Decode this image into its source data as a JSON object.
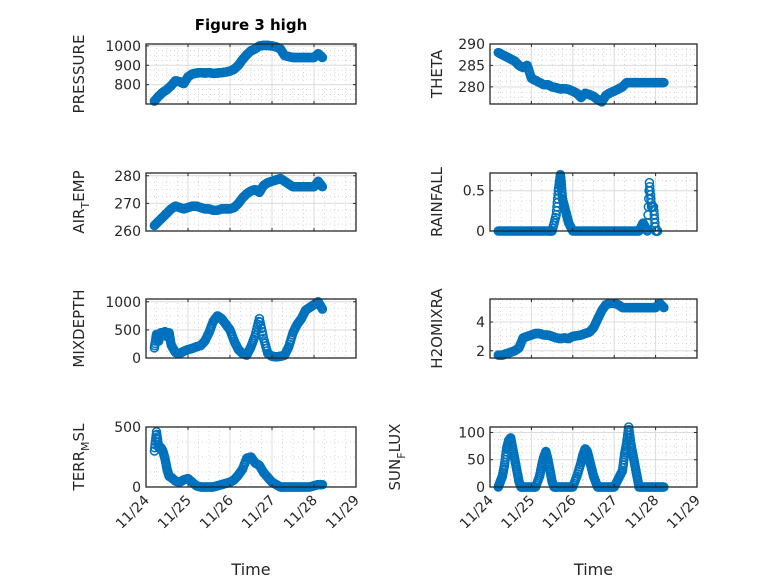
{
  "figure_title": "Figure 3 high",
  "chart_data": [
    {
      "type": "scatter",
      "id": "pressure",
      "title": "Figure 3 high",
      "xlabel": "",
      "ylabel": "PRESSURE",
      "xlim": [
        0,
        5
      ],
      "ylim": [
        700,
        1010
      ],
      "xticks": [
        "11/24",
        "11/25",
        "11/26",
        "11/27",
        "11/28",
        "11/29"
      ],
      "yticks": [
        800,
        900,
        1000
      ],
      "ytick_labels": [
        "800",
        "900",
        "1000"
      ],
      "grid": true,
      "marker": "circle-open",
      "color": "#0072BD",
      "x": [
        0.2,
        0.3,
        0.4,
        0.5,
        0.6,
        0.7,
        0.8,
        0.9,
        1.0,
        1.1,
        1.2,
        1.3,
        1.4,
        1.5,
        1.6,
        1.7,
        1.8,
        1.9,
        2.0,
        2.1,
        2.2,
        2.3,
        2.4,
        2.5,
        2.6,
        2.7,
        2.8,
        2.9,
        3.0,
        3.1,
        3.2,
        3.3,
        3.4,
        3.5,
        3.6,
        3.7,
        3.8,
        3.9,
        4.0,
        4.1,
        4.2
      ],
      "y": [
        715,
        740,
        760,
        775,
        795,
        820,
        815,
        805,
        840,
        855,
        860,
        862,
        860,
        862,
        858,
        860,
        862,
        865,
        870,
        880,
        900,
        930,
        955,
        975,
        985,
        1000,
        1003,
        1003,
        1000,
        995,
        985,
        950,
        945,
        940,
        940,
        940,
        940,
        940,
        940,
        960,
        940
      ]
    },
    {
      "type": "scatter",
      "id": "theta",
      "xlabel": "",
      "ylabel": "THETA",
      "xlim": [
        0,
        5
      ],
      "ylim": [
        276,
        290
      ],
      "xticks": [
        "11/24",
        "11/25",
        "11/26",
        "11/27",
        "11/28",
        "11/29"
      ],
      "yticks": [
        280,
        285,
        290
      ],
      "ytick_labels": [
        "280",
        "285",
        "290"
      ],
      "grid": true,
      "marker": "circle-open",
      "color": "#0072BD",
      "x": [
        0.2,
        0.3,
        0.4,
        0.5,
        0.6,
        0.7,
        0.8,
        0.9,
        1.0,
        1.1,
        1.2,
        1.3,
        1.4,
        1.5,
        1.6,
        1.7,
        1.8,
        1.9,
        2.0,
        2.1,
        2.2,
        2.3,
        2.4,
        2.5,
        2.6,
        2.7,
        2.8,
        2.9,
        3.0,
        3.1,
        3.2,
        3.3,
        3.4,
        3.5,
        3.6,
        3.7,
        3.8,
        3.9,
        4.0,
        4.1,
        4.2
      ],
      "y": [
        288,
        287.5,
        287,
        286.5,
        286,
        285,
        284.5,
        285,
        282,
        281.5,
        281,
        280.5,
        280.5,
        280,
        279.8,
        279.5,
        279.6,
        279.4,
        279,
        278.5,
        277.5,
        278.5,
        278.2,
        277.8,
        277,
        276.5,
        278,
        278.6,
        279,
        279.5,
        280,
        281,
        281,
        281,
        281,
        281,
        281,
        281,
        281,
        281,
        281
      ]
    },
    {
      "type": "scatter",
      "id": "air_temp",
      "xlabel": "",
      "ylabel": "AIR_TEMP",
      "xlim": [
        0,
        5
      ],
      "ylim": [
        260,
        281
      ],
      "xticks": [
        "11/24",
        "11/25",
        "11/26",
        "11/27",
        "11/28",
        "11/29"
      ],
      "yticks": [
        260,
        270,
        280
      ],
      "ytick_labels": [
        "260",
        "270",
        "280"
      ],
      "grid": true,
      "marker": "circle-open",
      "color": "#0072BD",
      "x": [
        0.2,
        0.3,
        0.4,
        0.5,
        0.6,
        0.7,
        0.8,
        0.9,
        1.0,
        1.1,
        1.2,
        1.3,
        1.4,
        1.5,
        1.6,
        1.7,
        1.8,
        1.9,
        2.0,
        2.1,
        2.2,
        2.3,
        2.4,
        2.5,
        2.6,
        2.7,
        2.8,
        2.9,
        3.0,
        3.1,
        3.2,
        3.3,
        3.4,
        3.5,
        3.6,
        3.7,
        3.8,
        3.9,
        4.0,
        4.1,
        4.2
      ],
      "y": [
        262,
        263.5,
        265,
        266.5,
        268,
        269,
        268.5,
        268,
        268.5,
        269,
        269,
        268.5,
        268,
        268,
        267.5,
        267.5,
        268,
        268,
        268,
        268.5,
        270,
        272,
        273.5,
        274.5,
        275,
        274,
        276.5,
        277.5,
        278,
        278.5,
        279,
        278,
        277,
        276,
        276,
        276,
        276,
        276,
        276,
        278,
        276
      ]
    },
    {
      "type": "scatter",
      "id": "rainfall",
      "xlabel": "",
      "ylabel": "RAINFALL",
      "xlim": [
        0,
        5
      ],
      "ylim": [
        0,
        0.72
      ],
      "xticks": [
        "11/24",
        "11/25",
        "11/26",
        "11/27",
        "11/28",
        "11/29"
      ],
      "yticks": [
        0,
        0.5
      ],
      "ytick_labels": [
        "0",
        "0.5"
      ],
      "grid": true,
      "marker": "circle-open",
      "color": "#0072BD",
      "x": [
        0.2,
        0.4,
        0.6,
        0.8,
        1.0,
        1.2,
        1.4,
        1.5,
        1.6,
        1.65,
        1.7,
        1.72,
        1.75,
        1.8,
        1.85,
        1.9,
        2.0,
        2.2,
        2.4,
        2.6,
        2.8,
        3.0,
        3.2,
        3.4,
        3.6,
        3.7,
        3.8,
        3.85,
        3.9,
        3.95,
        4.0,
        4.05
      ],
      "y": [
        0,
        0,
        0,
        0,
        0,
        0,
        0,
        0,
        0.2,
        0.5,
        0.7,
        0.6,
        0.4,
        0.3,
        0.2,
        0.1,
        0,
        0,
        0,
        0,
        0,
        0,
        0,
        0,
        0,
        0.1,
        0,
        0.6,
        0.3,
        0.3,
        0,
        0
      ]
    },
    {
      "type": "scatter",
      "id": "mixdepth",
      "xlabel": "",
      "ylabel": "MIXDEPTH",
      "xlim": [
        0,
        5
      ],
      "ylim": [
        0,
        1050
      ],
      "xticks": [
        "11/24",
        "11/25",
        "11/26",
        "11/27",
        "11/28",
        "11/29"
      ],
      "yticks": [
        0,
        500,
        1000
      ],
      "ytick_labels": [
        "0",
        "500",
        "1000"
      ],
      "grid": true,
      "marker": "circle-open",
      "color": "#0072BD",
      "x": [
        0.2,
        0.25,
        0.3,
        0.35,
        0.4,
        0.45,
        0.5,
        0.55,
        0.6,
        0.7,
        0.8,
        0.9,
        1.0,
        1.1,
        1.2,
        1.3,
        1.4,
        1.5,
        1.6,
        1.7,
        1.8,
        1.9,
        2.0,
        2.1,
        2.2,
        2.3,
        2.4,
        2.5,
        2.6,
        2.7,
        2.8,
        2.9,
        3.0,
        3.1,
        3.2,
        3.3,
        3.4,
        3.5,
        3.6,
        3.7,
        3.8,
        3.9,
        4.0,
        4.1,
        4.2
      ],
      "y": [
        180,
        420,
        300,
        450,
        430,
        470,
        380,
        450,
        230,
        100,
        80,
        120,
        150,
        170,
        200,
        220,
        300,
        450,
        650,
        750,
        700,
        600,
        500,
        300,
        150,
        80,
        50,
        200,
        400,
        700,
        350,
        80,
        30,
        20,
        30,
        50,
        200,
        450,
        600,
        700,
        850,
        900,
        950,
        1000,
        870
      ]
    },
    {
      "type": "scatter",
      "id": "h2omixra",
      "xlabel": "",
      "ylabel": "H2OMIXRA",
      "xlim": [
        0,
        5
      ],
      "ylim": [
        1.5,
        5.6
      ],
      "xticks": [
        "11/24",
        "11/25",
        "11/26",
        "11/27",
        "11/28",
        "11/29"
      ],
      "yticks": [
        2,
        4
      ],
      "ytick_labels": [
        "2",
        "4"
      ],
      "grid": true,
      "marker": "circle-open",
      "color": "#0072BD",
      "x": [
        0.2,
        0.3,
        0.4,
        0.5,
        0.6,
        0.7,
        0.8,
        0.9,
        1.0,
        1.1,
        1.2,
        1.3,
        1.4,
        1.5,
        1.6,
        1.7,
        1.8,
        1.9,
        2.0,
        2.1,
        2.2,
        2.3,
        2.4,
        2.5,
        2.6,
        2.7,
        2.8,
        2.9,
        3.0,
        3.1,
        3.2,
        3.3,
        3.4,
        3.5,
        3.6,
        3.7,
        3.8,
        3.9,
        4.0,
        4.1,
        4.2
      ],
      "y": [
        1.7,
        1.7,
        1.8,
        1.9,
        2.0,
        2.2,
        2.9,
        3.0,
        3.1,
        3.2,
        3.2,
        3.1,
        3.1,
        3.0,
        2.9,
        2.85,
        2.9,
        2.85,
        3.0,
        3.05,
        3.1,
        3.2,
        3.3,
        3.6,
        4.2,
        4.8,
        5.2,
        5.3,
        5.3,
        5.2,
        5.0,
        5.0,
        5.0,
        5.0,
        5.0,
        5.0,
        5.0,
        5.0,
        5.0,
        5.3,
        5.0
      ]
    },
    {
      "type": "scatter",
      "id": "terr_msl",
      "xlabel": "Time",
      "ylabel": "TERR_MSL",
      "xlim": [
        0,
        5
      ],
      "ylim": [
        0,
        500
      ],
      "xticks": [
        "11/24",
        "11/25",
        "11/26",
        "11/27",
        "11/28",
        "11/29"
      ],
      "yticks": [
        0,
        500
      ],
      "ytick_labels": [
        "0",
        "500"
      ],
      "grid": true,
      "marker": "circle-open",
      "color": "#0072BD",
      "x": [
        0.2,
        0.25,
        0.3,
        0.35,
        0.4,
        0.45,
        0.5,
        0.55,
        0.6,
        0.7,
        0.8,
        0.9,
        1.0,
        1.1,
        1.2,
        1.3,
        1.4,
        1.5,
        1.6,
        1.7,
        1.8,
        1.9,
        2.0,
        2.1,
        2.2,
        2.3,
        2.4,
        2.5,
        2.6,
        2.7,
        2.8,
        2.9,
        3.0,
        3.1,
        3.2,
        3.3,
        3.4,
        3.5,
        3.6,
        3.7,
        3.8,
        3.9,
        4.0,
        4.1,
        4.2
      ],
      "y": [
        300,
        460,
        330,
        330,
        300,
        240,
        150,
        90,
        80,
        50,
        40,
        60,
        70,
        40,
        10,
        0,
        0,
        0,
        0,
        10,
        20,
        30,
        40,
        60,
        100,
        150,
        240,
        250,
        200,
        180,
        120,
        80,
        40,
        20,
        0,
        0,
        0,
        0,
        0,
        0,
        0,
        0,
        10,
        20,
        20
      ]
    },
    {
      "type": "scatter",
      "id": "sun_flux",
      "xlabel": "Time",
      "ylabel": "SUN_FLUX",
      "xlim": [
        0,
        5
      ],
      "ylim": [
        0,
        110
      ],
      "xticks": [
        "11/24",
        "11/25",
        "11/26",
        "11/27",
        "11/28",
        "11/29"
      ],
      "yticks": [
        0,
        50,
        100
      ],
      "ytick_labels": [
        "0",
        "50",
        "100"
      ],
      "grid": true,
      "marker": "circle-open",
      "color": "#0072BD",
      "x": [
        0.2,
        0.25,
        0.3,
        0.35,
        0.4,
        0.45,
        0.5,
        0.55,
        0.6,
        0.65,
        0.7,
        0.75,
        0.8,
        0.9,
        1.0,
        1.1,
        1.2,
        1.25,
        1.3,
        1.35,
        1.4,
        1.45,
        1.5,
        1.55,
        1.6,
        1.7,
        1.8,
        1.9,
        2.0,
        2.1,
        2.2,
        2.25,
        2.3,
        2.35,
        2.4,
        2.45,
        2.5,
        2.55,
        2.6,
        2.7,
        2.8,
        2.9,
        3.0,
        3.1,
        3.2,
        3.25,
        3.3,
        3.35,
        3.4,
        3.45,
        3.5,
        3.55,
        3.6,
        3.7,
        3.8,
        3.9,
        4.0,
        4.1,
        4.2
      ],
      "y": [
        0,
        10,
        20,
        40,
        70,
        85,
        90,
        70,
        50,
        30,
        10,
        0,
        0,
        0,
        0,
        0,
        20,
        40,
        55,
        65,
        50,
        30,
        10,
        0,
        0,
        0,
        0,
        0,
        0,
        20,
        45,
        60,
        70,
        65,
        50,
        35,
        20,
        10,
        0,
        0,
        0,
        0,
        0,
        15,
        30,
        60,
        80,
        110,
        80,
        60,
        40,
        20,
        0,
        0,
        0,
        0,
        0,
        0,
        0
      ]
    }
  ]
}
